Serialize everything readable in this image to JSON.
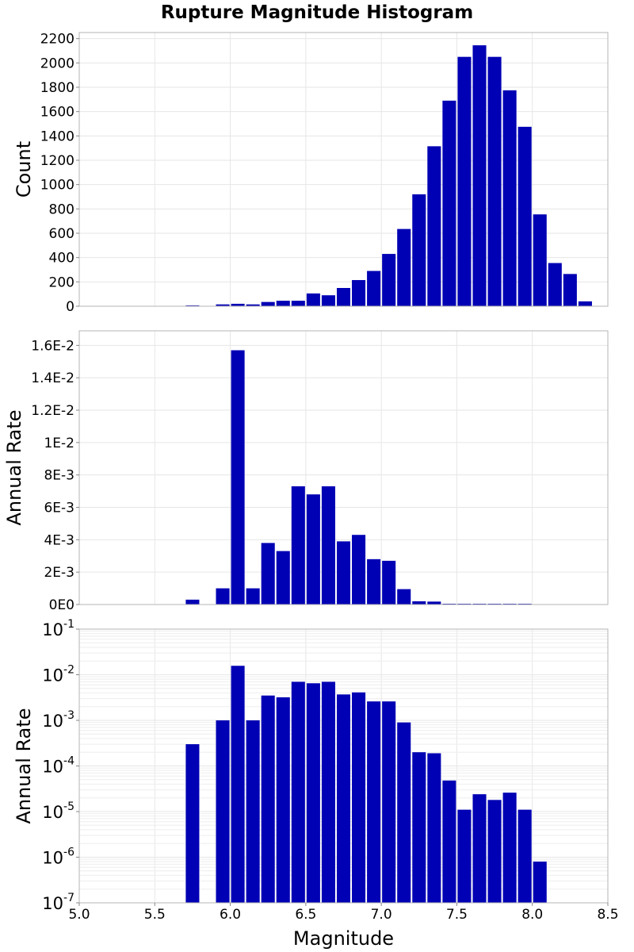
{
  "chart_data": [
    {
      "type": "bar",
      "title": "Rupture Magnitude Histogram",
      "xlabel": "",
      "ylabel": "Count",
      "xlim": [
        5.0,
        8.5
      ],
      "ylim": [
        0,
        2250
      ],
      "bin_width": 0.1,
      "yticks": [
        0,
        200,
        400,
        600,
        800,
        1000,
        1200,
        1400,
        1600,
        1800,
        2000,
        2200
      ],
      "ytick_labels": [
        "0",
        "200",
        "400",
        "600",
        "800",
        "1000",
        "1200",
        "1400",
        "1600",
        "1800",
        "2000",
        "2200"
      ],
      "color": "#0000B4",
      "x": [
        5.75,
        5.95,
        6.05,
        6.15,
        6.25,
        6.35,
        6.45,
        6.55,
        6.65,
        6.75,
        6.85,
        6.95,
        7.05,
        7.15,
        7.25,
        7.35,
        7.45,
        7.55,
        7.65,
        7.75,
        7.85,
        7.95,
        8.05,
        8.15,
        8.25,
        8.35
      ],
      "values": [
        7,
        15,
        20,
        15,
        35,
        45,
        45,
        105,
        90,
        150,
        215,
        290,
        430,
        635,
        920,
        1315,
        1690,
        2050,
        2145,
        2050,
        1775,
        1475,
        755,
        355,
        265,
        40
      ]
    },
    {
      "type": "bar",
      "xlabel": "",
      "ylabel": "Annual Rate",
      "xlim": [
        5.0,
        8.5
      ],
      "ylim": [
        0,
        0.0169
      ],
      "bin_width": 0.1,
      "yticks": [
        0,
        0.002,
        0.004,
        0.006,
        0.008,
        0.01,
        0.012,
        0.014,
        0.016
      ],
      "ytick_labels": [
        "0E0",
        "2E-3",
        "4E-3",
        "6E-3",
        "8E-3",
        "1E-2",
        "1.2E-2",
        "1.4E-2",
        "1.6E-2"
      ],
      "color": "#0000B4",
      "x": [
        5.75,
        5.95,
        6.05,
        6.15,
        6.25,
        6.35,
        6.45,
        6.55,
        6.65,
        6.75,
        6.85,
        6.95,
        7.05,
        7.15,
        7.25,
        7.35,
        7.45,
        7.55,
        7.65,
        7.75,
        7.85,
        7.95
      ],
      "values": [
        0.0003,
        0.001,
        0.0157,
        0.001,
        0.0038,
        0.0033,
        0.0073,
        0.0068,
        0.0073,
        0.0039,
        0.0043,
        0.0028,
        0.0027,
        0.00095,
        0.0002,
        0.00018,
        5e-05,
        1e-05,
        2.3e-05,
        1.8e-05,
        2.5e-05,
        1e-05
      ]
    },
    {
      "type": "bar",
      "xlabel": "Magnitude",
      "ylabel": "Annual Rate",
      "xlim": [
        5.0,
        8.5
      ],
      "yscale": "log",
      "ylim": [
        1e-07,
        0.1
      ],
      "bin_width": 0.1,
      "yticks": [
        1e-07,
        1e-06,
        1e-05,
        0.0001,
        0.001,
        0.01,
        0.1
      ],
      "ytick_exponents": [
        "-7",
        "-6",
        "-5",
        "-4",
        "-3",
        "-2",
        "-1"
      ],
      "ytick_base": "10",
      "xticks": [
        5.0,
        5.5,
        6.0,
        6.5,
        7.0,
        7.5,
        8.0,
        8.5
      ],
      "xtick_labels": [
        "5.0",
        "5.5",
        "6.0",
        "6.5",
        "7.0",
        "7.5",
        "8.0",
        "8.5"
      ],
      "color": "#0000B4",
      "x": [
        5.75,
        5.95,
        6.05,
        6.15,
        6.25,
        6.35,
        6.45,
        6.55,
        6.65,
        6.75,
        6.85,
        6.95,
        7.05,
        7.15,
        7.25,
        7.35,
        7.45,
        7.55,
        7.65,
        7.75,
        7.85,
        7.95,
        8.05
      ],
      "values": [
        0.0003,
        0.001,
        0.0157,
        0.001,
        0.0035,
        0.0032,
        0.007,
        0.0065,
        0.007,
        0.0037,
        0.0041,
        0.0026,
        0.0026,
        0.0009,
        0.0002,
        0.00019,
        4.8e-05,
        1.1e-05,
        2.4e-05,
        1.8e-05,
        2.6e-05,
        1.1e-05,
        8e-07
      ]
    }
  ]
}
